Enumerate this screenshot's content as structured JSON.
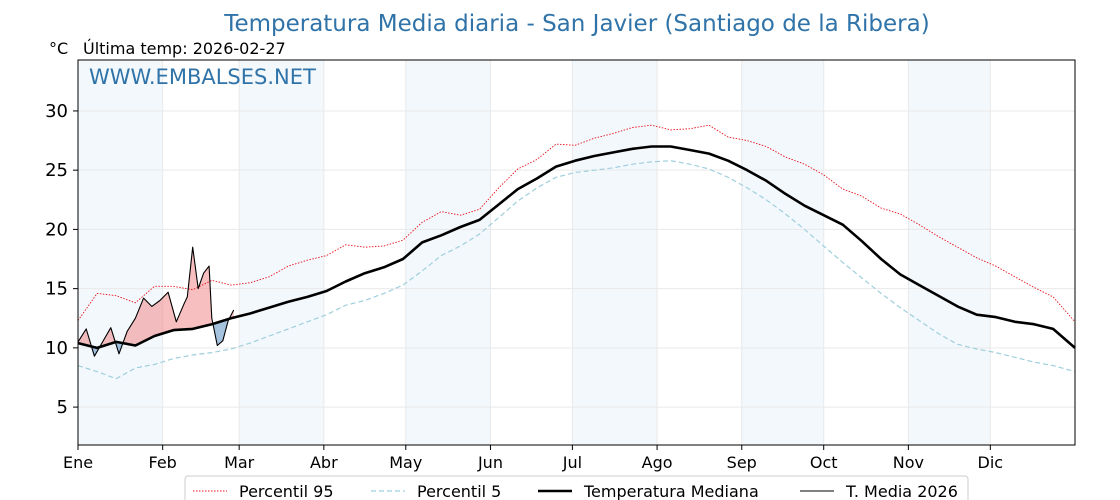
{
  "chart_data": {
    "type": "line",
    "title": "Temperatura Media diaria - San Javier (Santiago de la Ribera)",
    "unit_label": "°C",
    "last_temp_label": "Última temp: 2026-02-27",
    "watermark": "WWW.EMBALSES.NET",
    "ylim": [
      1.8,
      34.3
    ],
    "yticks": [
      5,
      10,
      15,
      20,
      25,
      30
    ],
    "xlim": [
      1,
      366
    ],
    "months": [
      {
        "label": "Ene",
        "day": 1
      },
      {
        "label": "Feb",
        "day": 32
      },
      {
        "label": "Mar",
        "day": 60
      },
      {
        "label": "Abr",
        "day": 91
      },
      {
        "label": "May",
        "day": 121
      },
      {
        "label": "Jun",
        "day": 152
      },
      {
        "label": "Jul",
        "day": 182
      },
      {
        "label": "Ago",
        "day": 213
      },
      {
        "label": "Sep",
        "day": 244
      },
      {
        "label": "Oct",
        "day": 274
      },
      {
        "label": "Nov",
        "day": 305
      },
      {
        "label": "Dic",
        "day": 335
      }
    ],
    "grid": true,
    "shaded_months": [
      "Ene",
      "Mar",
      "May",
      "Jul",
      "Sep",
      "Nov"
    ],
    "legend_position": "bottom",
    "series": [
      {
        "name": "Percentil 95",
        "style": "dotted",
        "color": "#e8111a",
        "days": [
          1,
          8,
          15,
          22,
          29,
          36,
          43,
          50,
          57,
          64,
          71,
          78,
          85,
          92,
          99,
          106,
          113,
          120,
          127,
          134,
          141,
          148,
          155,
          162,
          169,
          176,
          183,
          190,
          197,
          204,
          211,
          218,
          225,
          232,
          239,
          246,
          253,
          260,
          267,
          274,
          281,
          288,
          295,
          302,
          309,
          316,
          323,
          330,
          337,
          344,
          351,
          358,
          366
        ],
        "values": [
          12.3,
          14.6,
          14.4,
          13.8,
          15.2,
          15.2,
          14.9,
          15.7,
          15.3,
          15.5,
          16.0,
          16.9,
          17.4,
          17.8,
          18.7,
          18.5,
          18.6,
          19.1,
          20.6,
          21.5,
          21.2,
          21.7,
          23.5,
          25.1,
          25.9,
          27.2,
          27.1,
          27.7,
          28.1,
          28.6,
          28.8,
          28.4,
          28.5,
          28.8,
          27.8,
          27.5,
          27.0,
          26.1,
          25.5,
          24.6,
          23.4,
          22.8,
          21.8,
          21.3,
          20.4,
          19.4,
          18.5,
          17.6,
          16.9,
          16.0,
          15.1,
          14.3,
          12.2
        ]
      },
      {
        "name": "Percentil 5",
        "style": "dashed",
        "color": "#9fcfdc",
        "days": [
          1,
          8,
          15,
          22,
          29,
          36,
          43,
          50,
          57,
          64,
          71,
          78,
          85,
          92,
          99,
          106,
          113,
          120,
          127,
          134,
          141,
          148,
          155,
          162,
          169,
          176,
          183,
          190,
          197,
          204,
          211,
          218,
          225,
          232,
          239,
          246,
          253,
          260,
          267,
          274,
          281,
          288,
          295,
          302,
          309,
          316,
          323,
          330,
          337,
          344,
          351,
          358,
          366
        ],
        "values": [
          8.5,
          8.0,
          7.4,
          8.3,
          8.6,
          9.1,
          9.4,
          9.6,
          9.9,
          10.4,
          11.0,
          11.6,
          12.2,
          12.8,
          13.6,
          14.0,
          14.6,
          15.3,
          16.5,
          17.8,
          18.6,
          19.6,
          21.0,
          22.4,
          23.5,
          24.4,
          24.8,
          25.0,
          25.2,
          25.5,
          25.7,
          25.8,
          25.5,
          25.1,
          24.4,
          23.5,
          22.5,
          21.3,
          20.0,
          18.6,
          17.2,
          15.9,
          14.6,
          13.4,
          12.3,
          11.2,
          10.3,
          9.9,
          9.6,
          9.2,
          8.8,
          8.5,
          8.0
        ]
      },
      {
        "name": "Temperatura Mediana",
        "style": "solid-thick",
        "color": "#000000",
        "days": [
          1,
          8,
          15,
          22,
          29,
          36,
          43,
          50,
          57,
          64,
          71,
          78,
          85,
          92,
          99,
          106,
          113,
          120,
          127,
          134,
          141,
          148,
          155,
          162,
          169,
          176,
          183,
          190,
          197,
          204,
          211,
          218,
          225,
          232,
          239,
          246,
          253,
          260,
          267,
          274,
          281,
          288,
          295,
          302,
          309,
          316,
          323,
          330,
          337,
          344,
          351,
          358,
          366
        ],
        "values": [
          10.4,
          10.0,
          10.5,
          10.2,
          11.0,
          11.5,
          11.6,
          12.0,
          12.5,
          12.9,
          13.4,
          13.9,
          14.3,
          14.8,
          15.6,
          16.3,
          16.8,
          17.5,
          18.9,
          19.5,
          20.2,
          20.8,
          22.1,
          23.4,
          24.3,
          25.3,
          25.8,
          26.2,
          26.5,
          26.8,
          27.0,
          27.0,
          26.7,
          26.4,
          25.8,
          25.0,
          24.1,
          23.0,
          22.0,
          21.2,
          20.4,
          19.0,
          17.5,
          16.2,
          15.3,
          14.4,
          13.5,
          12.8,
          12.6,
          12.2,
          12.0,
          11.6,
          10.0
        ]
      },
      {
        "name": "T. Media 2026",
        "style": "solid-thin",
        "color": "#000000",
        "days": [
          1,
          4,
          7,
          10,
          13,
          16,
          19,
          22,
          25,
          28,
          31,
          34,
          37,
          40,
          41,
          43,
          45,
          47,
          49,
          50,
          52,
          54,
          56,
          58
        ],
        "values": [
          10.5,
          11.6,
          9.3,
          10.5,
          11.7,
          9.5,
          11.4,
          12.5,
          14.2,
          13.5,
          14.0,
          14.7,
          12.2,
          13.8,
          14.3,
          18.5,
          15.0,
          16.3,
          16.9,
          12.5,
          10.2,
          10.6,
          12.3,
          13.2
        ]
      }
    ]
  },
  "legend": [
    {
      "label": "Percentil 95"
    },
    {
      "label": "Percentil 5"
    },
    {
      "label": "Temperatura Mediana"
    },
    {
      "label": "T. Media 2026"
    }
  ]
}
